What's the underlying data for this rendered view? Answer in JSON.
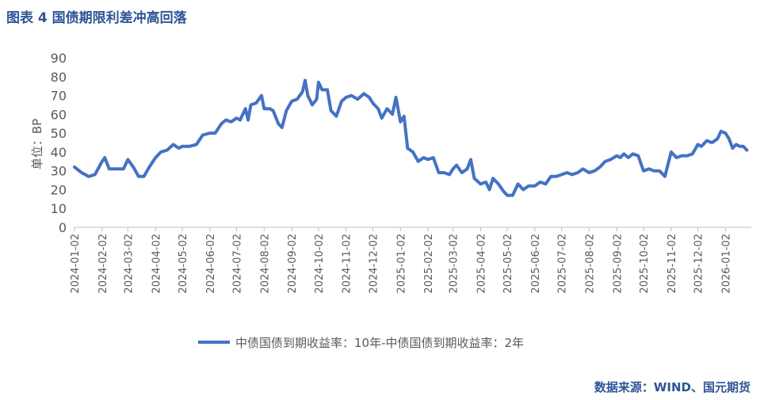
{
  "title": "图表 4 国债期限利差冲高回落",
  "source": "数据来源：WIND、国元期货",
  "chart_data": {
    "type": "line",
    "title": "",
    "ylabel": "单位：BP",
    "xlabel": "",
    "ylim": [
      0,
      90
    ],
    "yticks": [
      0,
      10,
      20,
      30,
      40,
      50,
      60,
      70,
      80,
      90
    ],
    "grid": false,
    "legend_position": "bottom",
    "line_color": "#4472c4",
    "x_tick_labels": [
      "2024-01-02",
      "2024-02-02",
      "2024-03-02",
      "2024-04-02",
      "2024-05-02",
      "2024-06-02",
      "2024-07-02",
      "2024-08-02",
      "2024-09-02",
      "2024-10-02",
      "2024-11-02",
      "2024-12-02",
      "2025-01-02",
      "2025-02-02",
      "2025-03-02",
      "2025-04-02",
      "2025-05-02",
      "2025-06-02",
      "2025-07-02",
      "2025-08-02",
      "2025-09-02",
      "2025-10-02",
      "2025-11-02",
      "2025-12-02",
      "2026-01-02"
    ],
    "series": [
      {
        "name": "中债国债到期收益率：10年-中债国债到期收益率：2年",
        "points": [
          [
            "2024-01-02",
            32
          ],
          [
            "2024-01-10",
            29
          ],
          [
            "2024-01-18",
            27
          ],
          [
            "2024-01-25",
            28
          ],
          [
            "2024-02-02",
            35
          ],
          [
            "2024-02-05",
            37
          ],
          [
            "2024-02-10",
            31
          ],
          [
            "2024-02-18",
            31
          ],
          [
            "2024-02-26",
            31
          ],
          [
            "2024-03-02",
            36
          ],
          [
            "2024-03-08",
            32
          ],
          [
            "2024-03-14",
            27
          ],
          [
            "2024-03-20",
            27
          ],
          [
            "2024-03-26",
            32
          ],
          [
            "2024-04-02",
            37
          ],
          [
            "2024-04-08",
            40
          ],
          [
            "2024-04-15",
            41
          ],
          [
            "2024-04-22",
            44
          ],
          [
            "2024-04-28",
            42
          ],
          [
            "2024-05-02",
            43
          ],
          [
            "2024-05-10",
            43
          ],
          [
            "2024-05-18",
            44
          ],
          [
            "2024-05-25",
            49
          ],
          [
            "2024-06-02",
            50
          ],
          [
            "2024-06-08",
            50
          ],
          [
            "2024-06-15",
            55
          ],
          [
            "2024-06-20",
            57
          ],
          [
            "2024-06-26",
            56
          ],
          [
            "2024-07-02",
            58
          ],
          [
            "2024-07-06",
            57
          ],
          [
            "2024-07-12",
            63
          ],
          [
            "2024-07-15",
            57
          ],
          [
            "2024-07-18",
            65
          ],
          [
            "2024-07-24",
            66
          ],
          [
            "2024-07-30",
            70
          ],
          [
            "2024-08-02",
            63
          ],
          [
            "2024-08-08",
            63
          ],
          [
            "2024-08-12",
            62
          ],
          [
            "2024-08-18",
            55
          ],
          [
            "2024-08-22",
            53
          ],
          [
            "2024-08-27",
            62
          ],
          [
            "2024-09-02",
            67
          ],
          [
            "2024-09-08",
            68
          ],
          [
            "2024-09-14",
            72
          ],
          [
            "2024-09-17",
            78
          ],
          [
            "2024-09-20",
            70
          ],
          [
            "2024-09-25",
            65
          ],
          [
            "2024-09-30",
            68
          ],
          [
            "2024-10-02",
            77
          ],
          [
            "2024-10-06",
            73
          ],
          [
            "2024-10-12",
            73
          ],
          [
            "2024-10-16",
            62
          ],
          [
            "2024-10-22",
            59
          ],
          [
            "2024-10-28",
            67
          ],
          [
            "2024-11-02",
            69
          ],
          [
            "2024-11-08",
            70
          ],
          [
            "2024-11-15",
            68
          ],
          [
            "2024-11-22",
            71
          ],
          [
            "2024-11-28",
            69
          ],
          [
            "2024-12-02",
            66
          ],
          [
            "2024-12-08",
            63
          ],
          [
            "2024-12-12",
            58
          ],
          [
            "2024-12-18",
            63
          ],
          [
            "2024-12-24",
            60
          ],
          [
            "2024-12-28",
            69
          ],
          [
            "2025-01-02",
            56
          ],
          [
            "2025-01-06",
            59
          ],
          [
            "2025-01-10",
            42
          ],
          [
            "2025-01-16",
            40
          ],
          [
            "2025-01-22",
            35
          ],
          [
            "2025-01-28",
            37
          ],
          [
            "2025-02-02",
            36
          ],
          [
            "2025-02-08",
            37
          ],
          [
            "2025-02-14",
            29
          ],
          [
            "2025-02-20",
            29
          ],
          [
            "2025-02-26",
            28
          ],
          [
            "2025-03-02",
            31
          ],
          [
            "2025-03-06",
            33
          ],
          [
            "2025-03-12",
            29
          ],
          [
            "2025-03-18",
            31
          ],
          [
            "2025-03-22",
            36
          ],
          [
            "2025-03-26",
            26
          ],
          [
            "2025-04-02",
            23
          ],
          [
            "2025-04-08",
            24
          ],
          [
            "2025-04-12",
            20
          ],
          [
            "2025-04-16",
            26
          ],
          [
            "2025-04-22",
            23
          ],
          [
            "2025-04-28",
            19
          ],
          [
            "2025-05-02",
            17
          ],
          [
            "2025-05-08",
            17
          ],
          [
            "2025-05-14",
            23
          ],
          [
            "2025-05-20",
            20
          ],
          [
            "2025-05-26",
            22
          ],
          [
            "2025-06-02",
            22
          ],
          [
            "2025-06-08",
            24
          ],
          [
            "2025-06-14",
            23
          ],
          [
            "2025-06-20",
            27
          ],
          [
            "2025-06-26",
            27
          ],
          [
            "2025-07-02",
            28
          ],
          [
            "2025-07-08",
            29
          ],
          [
            "2025-07-14",
            28
          ],
          [
            "2025-07-20",
            29
          ],
          [
            "2025-07-26",
            31
          ],
          [
            "2025-08-02",
            29
          ],
          [
            "2025-08-08",
            30
          ],
          [
            "2025-08-14",
            32
          ],
          [
            "2025-08-20",
            35
          ],
          [
            "2025-08-26",
            36
          ],
          [
            "2025-09-02",
            38
          ],
          [
            "2025-09-06",
            37
          ],
          [
            "2025-09-10",
            39
          ],
          [
            "2025-09-15",
            37
          ],
          [
            "2025-09-20",
            39
          ],
          [
            "2025-09-26",
            38
          ],
          [
            "2025-10-02",
            30
          ],
          [
            "2025-10-08",
            31
          ],
          [
            "2025-10-14",
            30
          ],
          [
            "2025-10-20",
            30
          ],
          [
            "2025-10-26",
            27
          ],
          [
            "2025-11-02",
            40
          ],
          [
            "2025-11-08",
            37
          ],
          [
            "2025-11-14",
            38
          ],
          [
            "2025-11-20",
            38
          ],
          [
            "2025-11-26",
            39
          ],
          [
            "2025-12-02",
            44
          ],
          [
            "2025-12-06",
            43
          ],
          [
            "2025-12-12",
            46
          ],
          [
            "2025-12-18",
            45
          ],
          [
            "2025-12-24",
            47
          ],
          [
            "2025-12-28",
            51
          ],
          [
            "2026-01-02",
            50
          ],
          [
            "2026-01-06",
            47
          ],
          [
            "2026-01-10",
            42
          ],
          [
            "2026-01-14",
            44
          ],
          [
            "2026-01-18",
            43
          ],
          [
            "2026-01-22",
            43
          ],
          [
            "2026-01-26",
            41
          ]
        ]
      }
    ]
  }
}
